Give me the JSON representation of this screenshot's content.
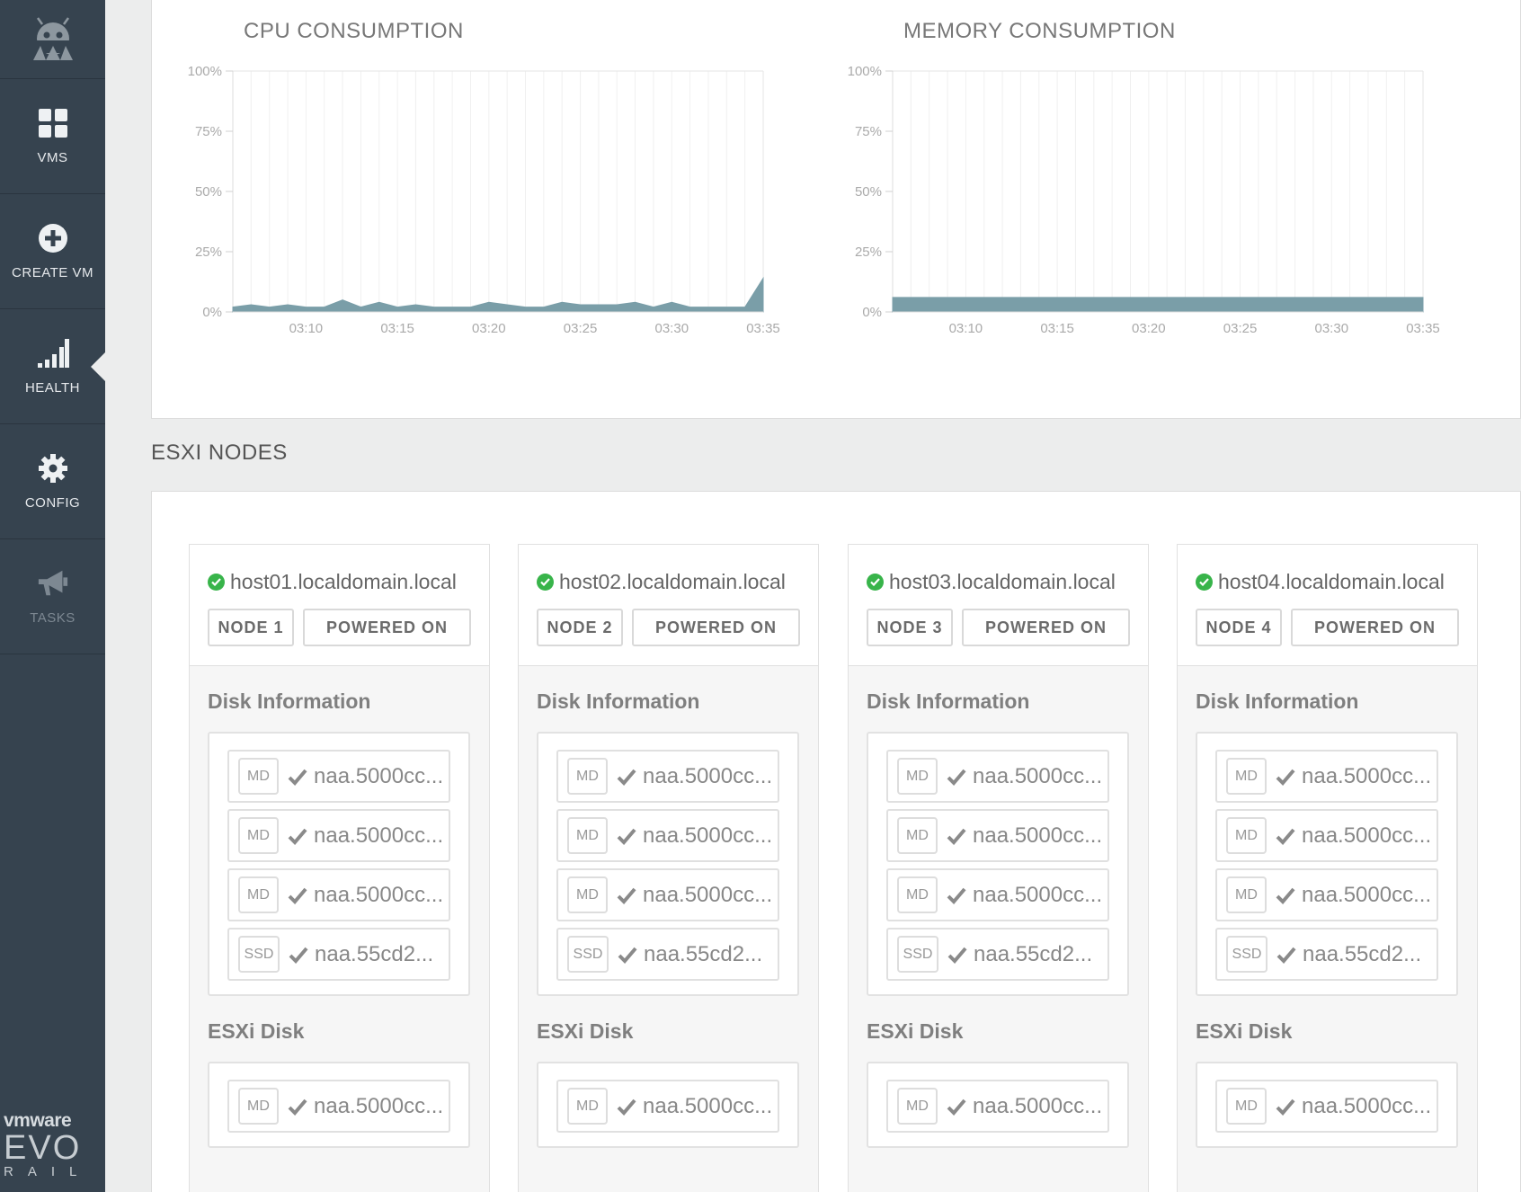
{
  "sidebar": {
    "logo_icon": "robot-logo-icon",
    "items": [
      {
        "label": "VMS",
        "icon": "grid-icon"
      },
      {
        "label": "CREATE VM",
        "icon": "plus-circle-icon"
      },
      {
        "label": "HEALTH",
        "icon": "signal-bars-icon"
      },
      {
        "label": "CONFIG",
        "icon": "gear-icon"
      },
      {
        "label": "TASKS",
        "icon": "megaphone-icon"
      }
    ],
    "active": "HEALTH",
    "brand": {
      "vmware": "vmware",
      "evo": "EVO",
      "rail": "RAIL"
    }
  },
  "charts": {
    "cpu_title": "CPU CONSUMPTION",
    "memory_title": "MEMORY CONSUMPTION"
  },
  "chart_data": [
    {
      "type": "area",
      "title": "CPU CONSUMPTION",
      "xlabel": "",
      "ylabel": "",
      "ytick_labels": [
        "100%",
        "75%",
        "50%",
        "25%",
        "0%"
      ],
      "ylim": [
        0,
        100
      ],
      "xtick_labels": [
        "03:10",
        "03:15",
        "03:20",
        "03:25",
        "03:30",
        "03:35"
      ],
      "grid": true,
      "color": "#7a9ea8",
      "series": [
        {
          "x": [
            "03:06",
            "03:07",
            "03:08",
            "03:09",
            "03:10",
            "03:11",
            "03:12",
            "03:13",
            "03:14",
            "03:15",
            "03:16",
            "03:17",
            "03:18",
            "03:19",
            "03:20",
            "03:21",
            "03:22",
            "03:23",
            "03:24",
            "03:25",
            "03:26",
            "03:27",
            "03:28",
            "03:29",
            "03:30",
            "03:31",
            "03:32",
            "03:33",
            "03:34",
            "03:35"
          ],
          "values": [
            2,
            3,
            2,
            3,
            2,
            2,
            5,
            2,
            4,
            2,
            3,
            2,
            2,
            2,
            4,
            3,
            2,
            2,
            4,
            3,
            3,
            3,
            4,
            2,
            4,
            2,
            2,
            2,
            2,
            14
          ]
        }
      ]
    },
    {
      "type": "area",
      "title": "MEMORY CONSUMPTION",
      "xlabel": "",
      "ylabel": "",
      "ytick_labels": [
        "100%",
        "75%",
        "50%",
        "25%",
        "0%"
      ],
      "ylim": [
        0,
        100
      ],
      "xtick_labels": [
        "03:10",
        "03:15",
        "03:20",
        "03:25",
        "03:30",
        "03:35"
      ],
      "grid": true,
      "color": "#7a9ea8",
      "series": [
        {
          "x": [
            "03:06",
            "03:35"
          ],
          "values": [
            6,
            6
          ]
        }
      ]
    }
  ],
  "nodes_section": {
    "title": "ESXI NODES",
    "disk_info_label": "Disk Information",
    "esxi_disk_label": "ESXi Disk",
    "nodes": [
      {
        "host": "host01.localdomain.local",
        "node": "NODE 1",
        "power": "POWERED ON"
      },
      {
        "host": "host02.localdomain.local",
        "node": "NODE 2",
        "power": "POWERED ON"
      },
      {
        "host": "host03.localdomain.local",
        "node": "NODE 3",
        "power": "POWERED ON"
      },
      {
        "host": "host04.localdomain.local",
        "node": "NODE 4",
        "power": "POWERED ON"
      }
    ],
    "disks": [
      {
        "type": "MD",
        "name": "naa.5000cc..."
      },
      {
        "type": "MD",
        "name": "naa.5000cc..."
      },
      {
        "type": "MD",
        "name": "naa.5000cc..."
      },
      {
        "type": "SSD",
        "name": "naa.55cd2..."
      }
    ],
    "esxi_disk": {
      "type": "MD",
      "name": "naa.5000cc..."
    }
  },
  "colors": {
    "sidebar": "#36434f",
    "status_ok": "#38b44a",
    "chart_fill": "#7a9ea8"
  }
}
